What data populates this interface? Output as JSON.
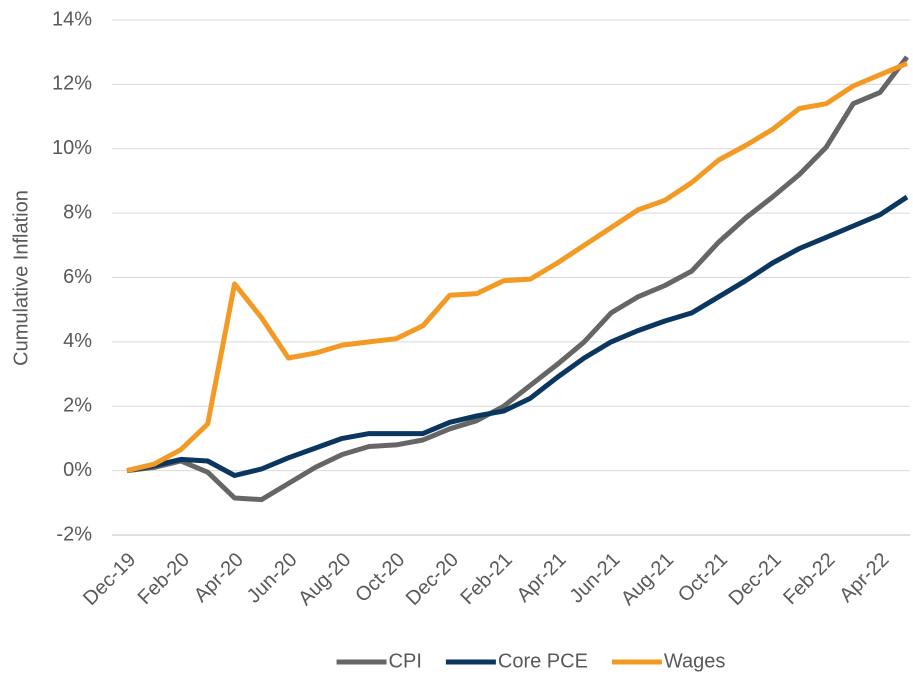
{
  "chart_data": {
    "type": "line",
    "y_label": "Cumulative Inflation",
    "categories": [
      "Dec-19",
      null,
      "Feb-20",
      null,
      "Apr-20",
      null,
      "Jun-20",
      null,
      "Aug-20",
      null,
      "Oct-20",
      null,
      "Dec-20",
      null,
      "Feb-21",
      null,
      "Apr-21",
      null,
      "Jun-21",
      null,
      "Aug-21",
      null,
      "Oct-21",
      null,
      "Dec-21",
      null,
      "Feb-22",
      null,
      "Apr-22",
      null
    ],
    "series": [
      {
        "name": "CPI",
        "color": "#666666",
        "values": [
          0,
          0.1,
          0.3,
          -0.05,
          -0.85,
          -0.9,
          -0.4,
          0.1,
          0.5,
          0.75,
          0.8,
          0.95,
          1.3,
          1.55,
          2.0,
          2.65,
          3.3,
          4.0,
          4.9,
          5.4,
          5.75,
          6.2,
          7.1,
          7.85,
          8.5,
          9.2,
          10.05,
          11.4,
          11.75,
          12.85
        ]
      },
      {
        "name": "Core PCE",
        "color": "#0b3660",
        "values": [
          0,
          0.15,
          0.35,
          0.3,
          -0.15,
          0.05,
          0.4,
          0.7,
          1.0,
          1.15,
          1.15,
          1.15,
          1.5,
          1.7,
          1.85,
          2.25,
          2.9,
          3.5,
          4.0,
          4.35,
          4.65,
          4.9,
          5.4,
          5.9,
          6.45,
          6.9,
          7.25,
          7.6,
          7.95,
          8.5
        ]
      },
      {
        "name": "Wages",
        "color": "#f39a25",
        "values": [
          0,
          0.2,
          0.65,
          1.45,
          5.8,
          4.75,
          3.5,
          3.65,
          3.9,
          4.0,
          4.1,
          4.5,
          5.45,
          5.5,
          5.9,
          5.95,
          6.45,
          7.0,
          7.55,
          8.1,
          8.4,
          8.95,
          9.65,
          10.1,
          10.6,
          11.25,
          11.4,
          11.95,
          12.3,
          12.65
        ]
      }
    ],
    "ylim": [
      -2,
      14
    ],
    "yticks": [
      {
        "value": -2,
        "label": "-2%"
      },
      {
        "value": 0,
        "label": "0%"
      },
      {
        "value": 2,
        "label": "2%"
      },
      {
        "value": 4,
        "label": "4%"
      },
      {
        "value": 6,
        "label": "6%"
      },
      {
        "value": 8,
        "label": "8%"
      },
      {
        "value": 10,
        "label": "10%"
      },
      {
        "value": 12,
        "label": "12%"
      },
      {
        "value": 14,
        "label": "14%"
      }
    ],
    "grid": true,
    "legend": "bottom"
  }
}
